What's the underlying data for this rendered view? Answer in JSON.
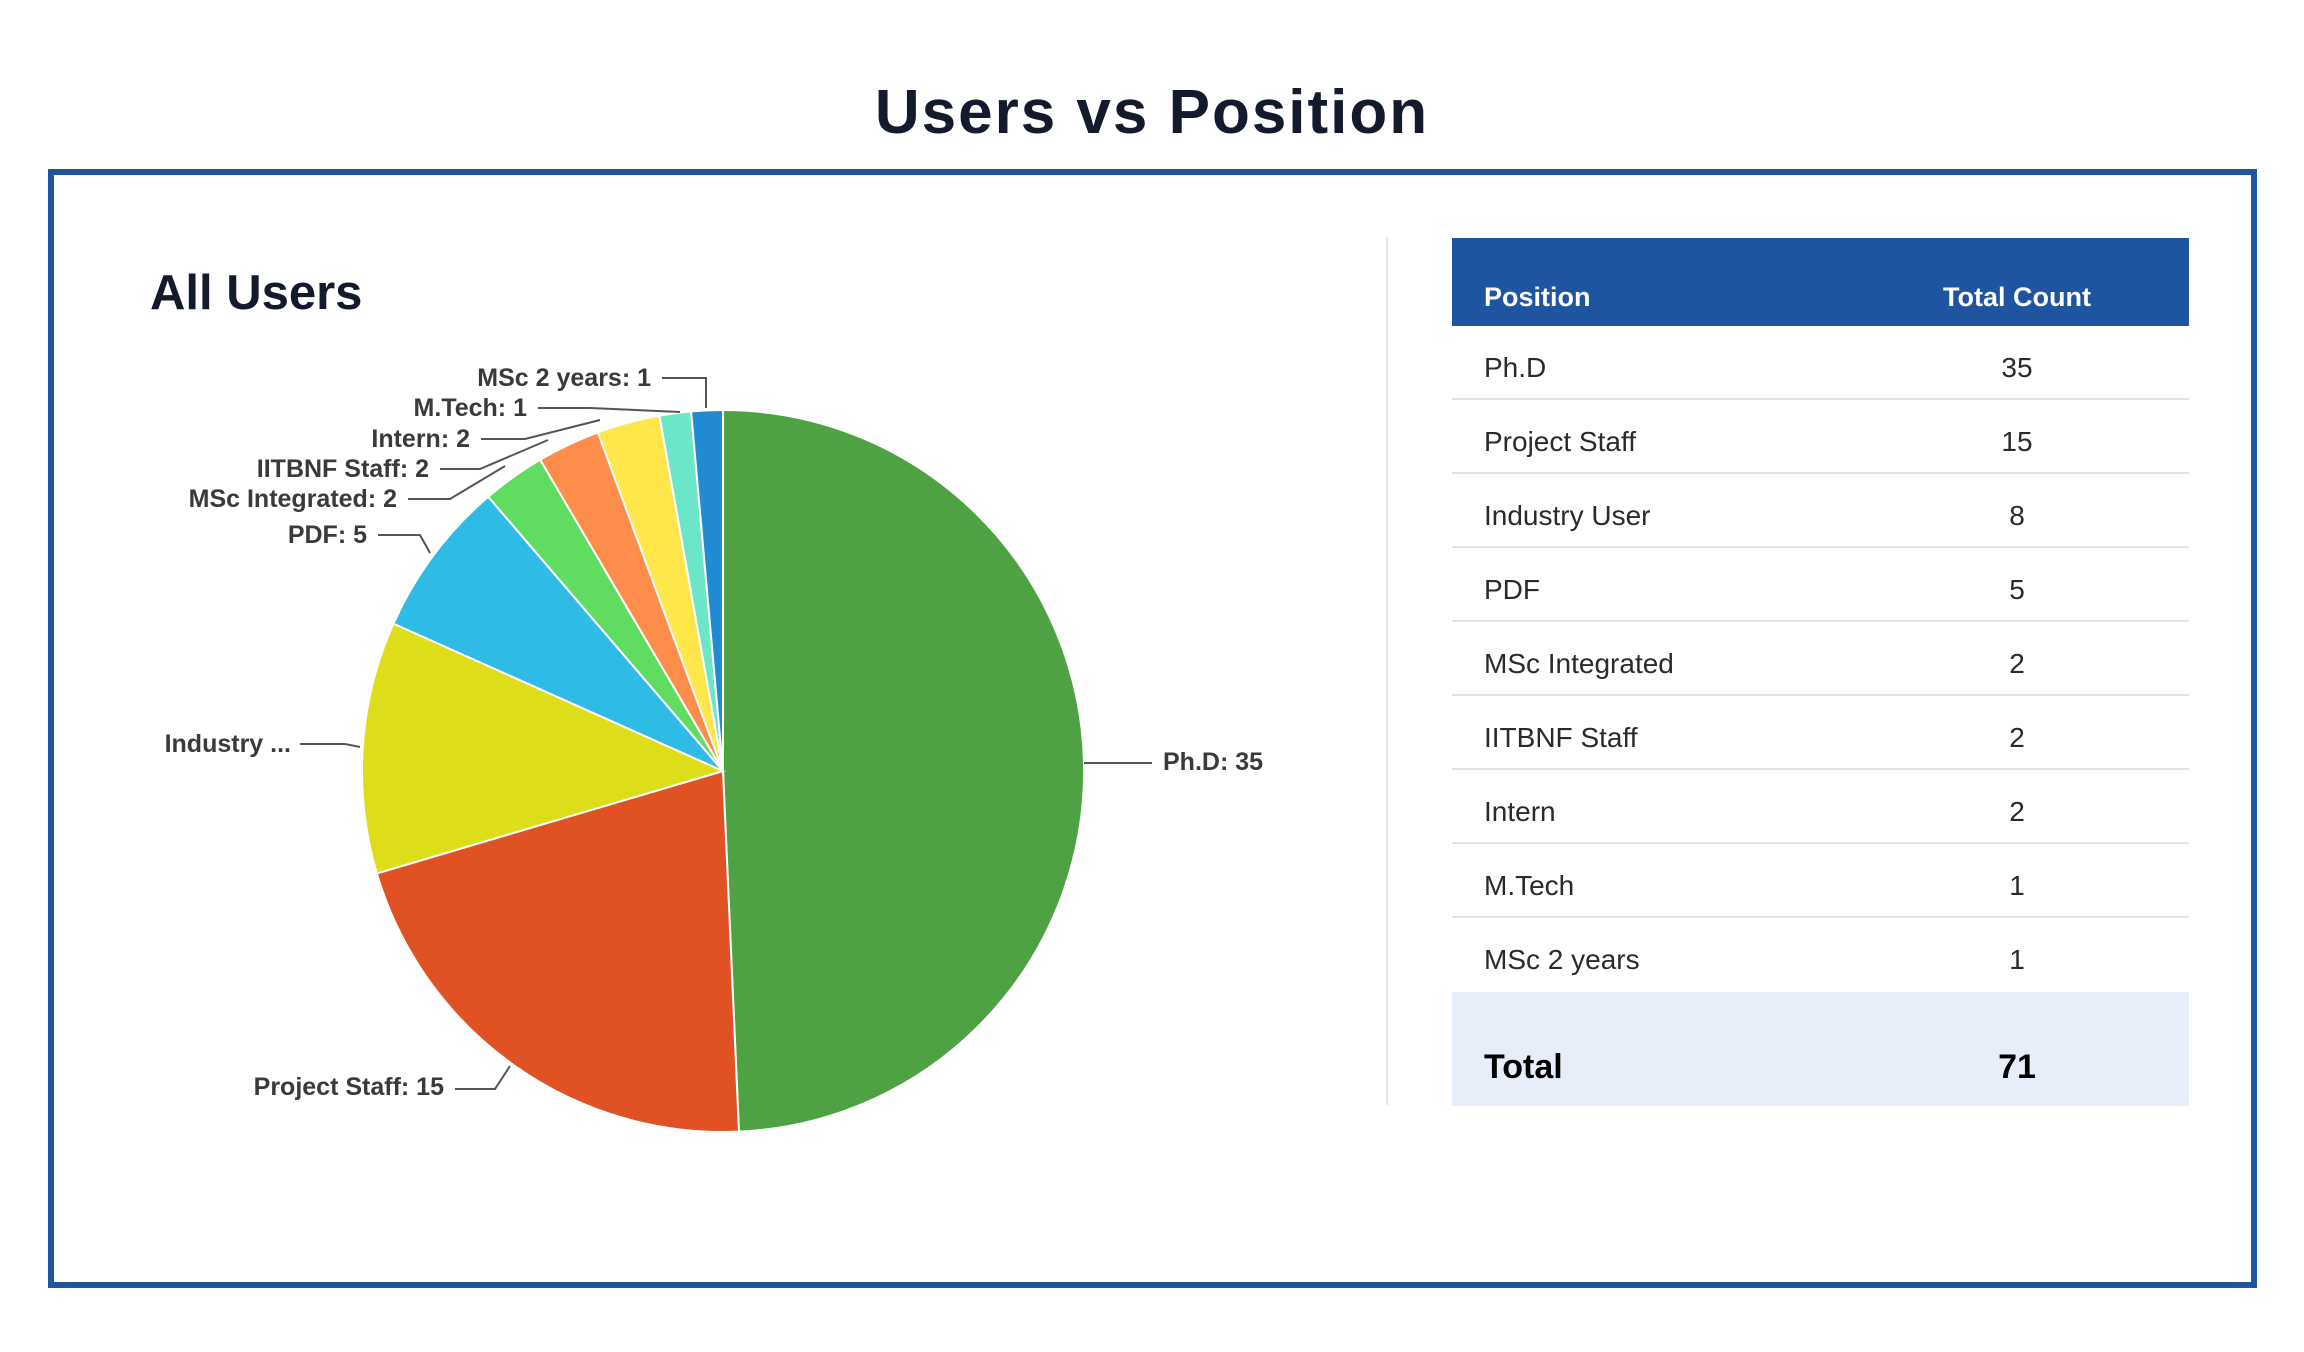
{
  "page": {
    "title": "Users vs Position"
  },
  "chart_data": {
    "type": "pie",
    "title": "All Users",
    "categories": [
      "Ph.D",
      "Project Staff",
      "Industry User",
      "PDF",
      "MSc Integrated",
      "IITBNF Staff",
      "Intern",
      "M.Tech",
      "MSc 2 years"
    ],
    "values": [
      35,
      15,
      8,
      5,
      2,
      2,
      2,
      1,
      1
    ],
    "slice_labels": [
      "Ph.D: 35",
      "Project Staff: 15",
      "Industry ...",
      "PDF: 5",
      "MSc Integrated: 2",
      "IITBNF Staff: 2",
      "Intern: 2",
      "M.Tech: 1",
      "MSc 2 years: 1"
    ],
    "colors": [
      "#4fa243",
      "#e05223",
      "#dddd19",
      "#2ebbe6",
      "#60dd61",
      "#fe8c4b",
      "#ffe64b",
      "#6ce6c8",
      "#228ad3"
    ],
    "start": "12 o'clock",
    "direction": "clockwise",
    "legend": "none"
  },
  "table": {
    "header_position": "Position",
    "header_count": "Total Count",
    "rows": [
      {
        "position": "Ph.D",
        "count": "35"
      },
      {
        "position": "Project Staff",
        "count": "15"
      },
      {
        "position": "Industry User",
        "count": "8"
      },
      {
        "position": "PDF",
        "count": "5"
      },
      {
        "position": "MSc Integrated",
        "count": "2"
      },
      {
        "position": "IITBNF Staff",
        "count": "2"
      },
      {
        "position": "Intern",
        "count": "2"
      },
      {
        "position": "M.Tech",
        "count": "1"
      },
      {
        "position": "MSc 2 years",
        "count": "1"
      }
    ],
    "total_label": "Total",
    "total_value": "71"
  },
  "colors": {
    "accent": "#1f54a0",
    "title_text": "#131a2b",
    "total_row_bg": "#e7eef9"
  }
}
